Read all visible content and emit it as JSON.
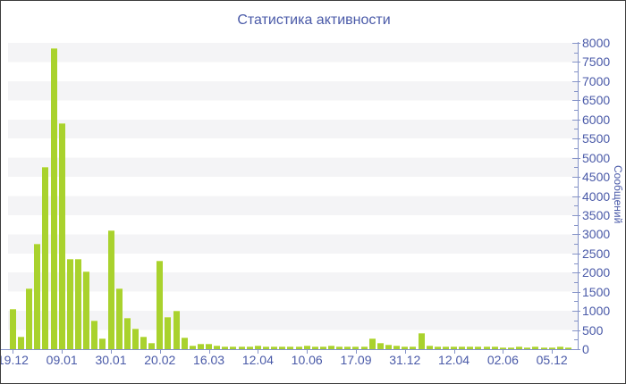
{
  "title": "Статистика активности",
  "colors": {
    "bar": "#a9d22d",
    "text_blue": "#4a5aa8",
    "axis": "#8593c8",
    "stripe": "#f4f4f6",
    "background": "#ffffff"
  },
  "chart_data": {
    "type": "bar",
    "title": "Статистика активности",
    "xlabel": "",
    "ylabel": "Сообщений",
    "ylim": [
      0,
      8000
    ],
    "y_major_step": 500,
    "y_minor_step": 250,
    "grid": "striped-bands",
    "legend": "none",
    "y_axis_side": "right",
    "x_tick_labels": [
      "19.12",
      "09.01",
      "30.01",
      "20.02",
      "16.03",
      "12.04",
      "10.06",
      "17.09",
      "31.12",
      "12.04",
      "02.06",
      "05.12"
    ],
    "bars_per_tick": 6,
    "values": [
      1050,
      330,
      1590,
      2760,
      4750,
      7860,
      5890,
      2350,
      2360,
      2020,
      750,
      280,
      3100,
      1590,
      820,
      540,
      330,
      170,
      2300,
      850,
      1000,
      300,
      100,
      130,
      130,
      90,
      60,
      70,
      60,
      70,
      90,
      70,
      60,
      70,
      80,
      70,
      90,
      80,
      70,
      90,
      80,
      70,
      80,
      60,
      280,
      170,
      120,
      100,
      60,
      80,
      420,
      90,
      70,
      70,
      70,
      60,
      60,
      60,
      60,
      60,
      50,
      50,
      60,
      50,
      60,
      50,
      50,
      60,
      50
    ]
  }
}
